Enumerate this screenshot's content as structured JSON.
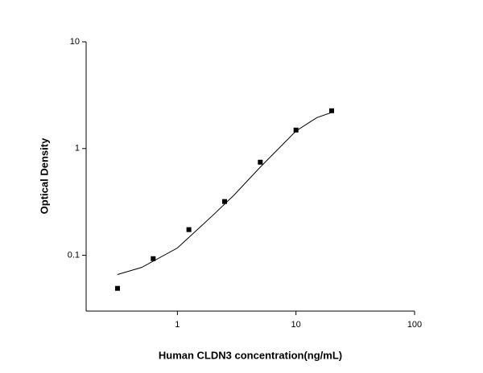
{
  "chart_data": {
    "type": "scatter",
    "x_label": "Human CLDN3 concentration(ng/mL)",
    "y_label": "Optical Density",
    "xscale": "log",
    "yscale": "log",
    "xlim": [
      0.17,
      100
    ],
    "ylim": [
      0.03,
      10
    ],
    "xticks": [
      1,
      10,
      100
    ],
    "yticks": [
      0.1,
      1,
      10
    ],
    "series": [
      {
        "mode": "markers",
        "color": "#000000",
        "x": [
          0.3125,
          0.625,
          1.25,
          2.5,
          5,
          10,
          20
        ],
        "values": [
          0.049,
          0.093,
          0.174,
          0.319,
          0.745,
          1.49,
          2.26
        ]
      },
      {
        "mode": "line",
        "color": "#000000",
        "x": [
          0.3125,
          0.5,
          1,
          2,
          3,
          5,
          10,
          15,
          20
        ],
        "values": [
          0.066,
          0.077,
          0.117,
          0.238,
          0.366,
          0.67,
          1.46,
          1.95,
          2.18
        ]
      }
    ]
  }
}
